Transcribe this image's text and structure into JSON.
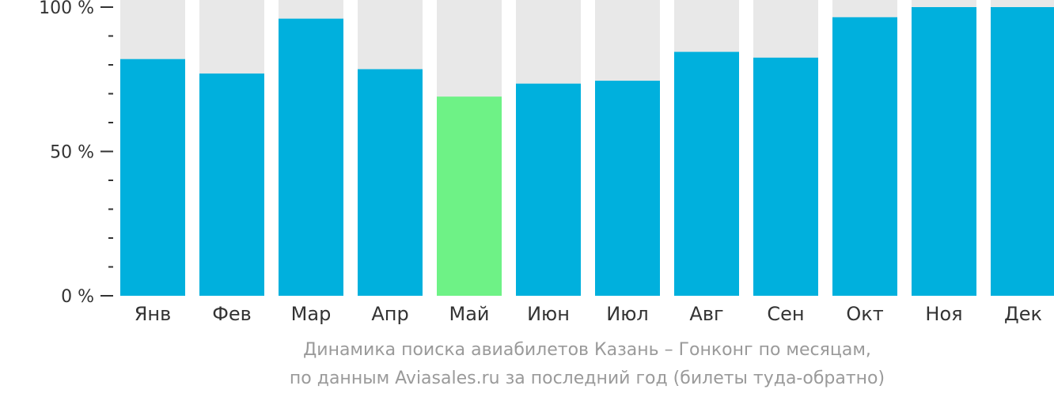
{
  "chart_data": {
    "type": "bar",
    "categories": [
      "Янв",
      "Фев",
      "Мар",
      "Апр",
      "Май",
      "Июн",
      "Июл",
      "Авг",
      "Сен",
      "Окт",
      "Ноя",
      "Дек"
    ],
    "values": [
      82,
      77,
      96,
      78.5,
      69,
      73.5,
      74.5,
      84.5,
      82.5,
      96.5,
      100,
      100
    ],
    "ylim": [
      0,
      100
    ],
    "y_ticks": [
      {
        "value": 100,
        "label": "100 %"
      },
      {
        "value": 50,
        "label": "50 %"
      },
      {
        "value": 0,
        "label": "0 %"
      }
    ],
    "y_minor_ticks": [
      10,
      20,
      30,
      40,
      60,
      70,
      80,
      90
    ],
    "highlight_index": 4,
    "colors": {
      "bar": "#00b0dd",
      "highlight": "#6ef286",
      "track": "#e8e8e8",
      "axis": "#333333"
    }
  },
  "caption": {
    "line1": "Динамика поиска авиабилетов Казань – Гонконг по месяцам,",
    "line2": "по данным Aviasales.ru за последний год (билеты туда-обратно)"
  }
}
